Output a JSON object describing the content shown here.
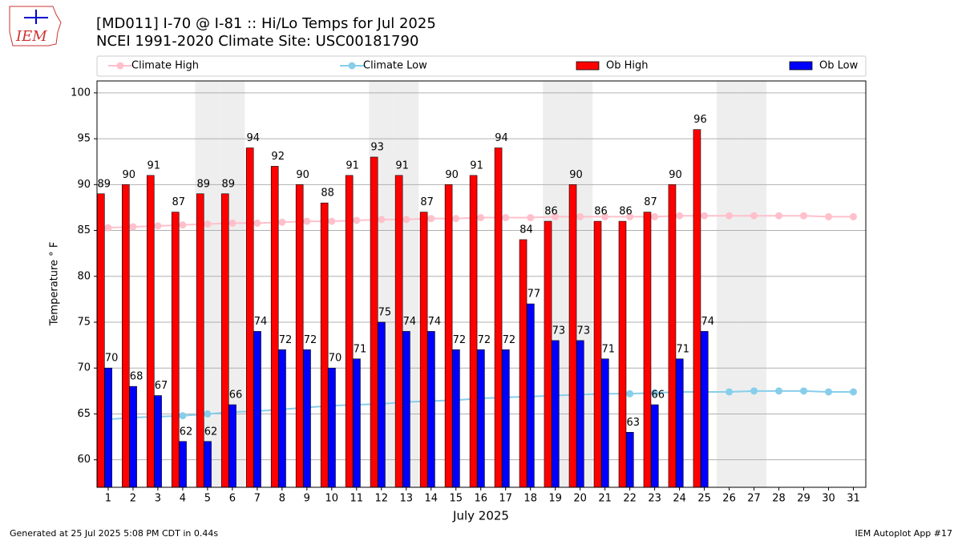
{
  "chart_data": {
    "type": "bar",
    "logo_text": "IEM",
    "title": "[MD011] I-70 @ I-81 :: Hi/Lo Temps for Jul 2025",
    "subtitle": "NCEI 1991-2020 Climate Site: USC00181790",
    "x_label": "July 2025",
    "y_label": "Temperature ° F",
    "footer_left": "Generated at 25 Jul 2025 5:08 PM CDT in 0.44s",
    "footer_right": "IEM Autoplot App #17",
    "x": [
      1,
      2,
      3,
      4,
      5,
      6,
      7,
      8,
      9,
      10,
      11,
      12,
      13,
      14,
      15,
      16,
      17,
      18,
      19,
      20,
      21,
      22,
      23,
      24,
      25,
      26,
      27,
      28,
      29,
      30,
      31
    ],
    "xlim": [
      0.55,
      31.5
    ],
    "ylim": [
      57,
      101.3
    ],
    "yticks": [
      60,
      65,
      70,
      75,
      80,
      85,
      90,
      95,
      100
    ],
    "grid": true,
    "shade_days": [
      5,
      6,
      12,
      13,
      19,
      20,
      26,
      27
    ],
    "series": [
      {
        "name": "Climate High",
        "kind": "line",
        "color": "#ffc0cb",
        "values": [
          85.3,
          85.4,
          85.5,
          85.6,
          85.7,
          85.8,
          85.8,
          85.9,
          86.0,
          86.0,
          86.1,
          86.2,
          86.2,
          86.3,
          86.3,
          86.4,
          86.4,
          86.4,
          86.5,
          86.5,
          86.5,
          86.5,
          86.5,
          86.6,
          86.6,
          86.6,
          86.6,
          86.6,
          86.6,
          86.5,
          86.5
        ]
      },
      {
        "name": "Climate Low",
        "kind": "line",
        "color": "#87ceeb",
        "values": [
          64.4,
          64.6,
          64.7,
          64.8,
          65.0,
          65.2,
          65.3,
          65.5,
          65.7,
          65.9,
          66.0,
          66.1,
          66.3,
          66.4,
          66.5,
          66.7,
          66.8,
          66.9,
          67.0,
          67.1,
          67.2,
          67.2,
          67.3,
          67.4,
          67.4,
          67.4,
          67.5,
          67.5,
          67.5,
          67.4,
          67.4
        ]
      },
      {
        "name": "Ob High",
        "kind": "bar",
        "color": "#ff0000",
        "values": [
          89,
          90,
          91,
          87,
          89,
          89,
          94,
          92,
          90,
          88,
          91,
          93,
          91,
          87,
          90,
          91,
          94,
          84,
          86,
          90,
          86,
          86,
          87,
          90,
          96,
          null,
          null,
          null,
          null,
          null,
          null
        ]
      },
      {
        "name": "Ob Low",
        "kind": "bar",
        "color": "#0000ff",
        "values": [
          70,
          68,
          67,
          62,
          62,
          66,
          74,
          72,
          72,
          70,
          71,
          75,
          74,
          74,
          72,
          72,
          72,
          77,
          73,
          73,
          71,
          63,
          66,
          71,
          74,
          null,
          null,
          null,
          null,
          null,
          null
        ]
      }
    ]
  }
}
